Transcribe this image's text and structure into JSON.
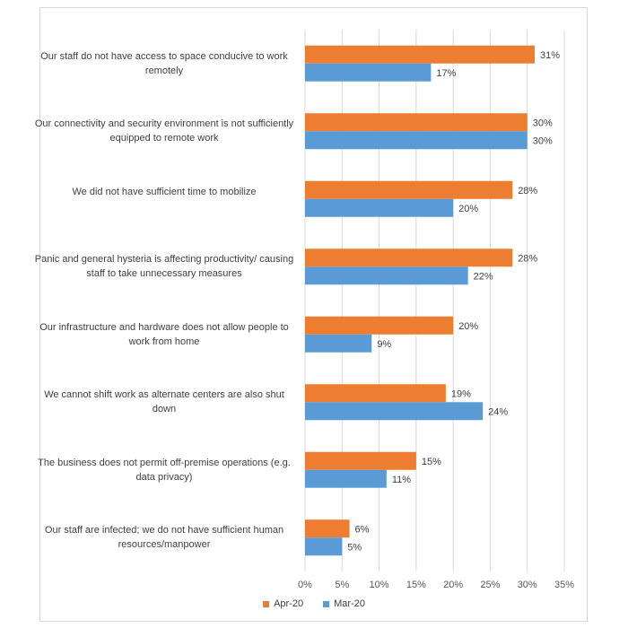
{
  "chart_data": {
    "type": "bar",
    "orientation": "horizontal",
    "categories": [
      "Our staff do not have access to space conducive to work remotely",
      "Our connectivity and security environment is not sufficiently equipped to remote work",
      "We did not have sufficient time to mobilize",
      "Panic and general hysteria is affecting productivity/ causing staff to take unnecessary measures",
      "Our infrastructure and hardware does not allow people to work from home",
      "We cannot shift work as alternate centers are also shut down",
      "The business does not permit off-premise operations (e.g. data privacy)",
      "Our staff are infected; we do not have sufficient human resources/manpower"
    ],
    "series": [
      {
        "name": "Apr-20",
        "color": "#ED7D31",
        "values": [
          31,
          30,
          28,
          28,
          20,
          19,
          15,
          6
        ]
      },
      {
        "name": "Mar-20",
        "color": "#5B9BD5",
        "values": [
          17,
          30,
          20,
          22,
          9,
          24,
          11,
          5
        ]
      }
    ],
    "data_label_format": "percent",
    "xlim": [
      0,
      35
    ],
    "xticks": [
      "0%",
      "5%",
      "10%",
      "15%",
      "20%",
      "25%",
      "30%",
      "35%"
    ],
    "grid": true,
    "legend_position": "bottom"
  }
}
